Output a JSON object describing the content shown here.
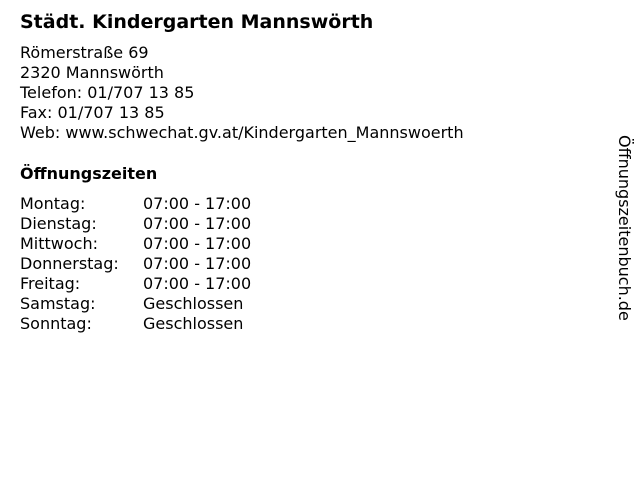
{
  "title": "Städt. Kindergarten Mannswörth",
  "address": {
    "street": "Römerstraße 69",
    "city": "2320 Mannswörth",
    "phone": "Telefon: 01/707 13 85",
    "fax": "Fax: 01/707 13 85",
    "web": "Web: www.schwechat.gv.at/Kindergarten_Mannswoerth"
  },
  "hours_heading": "Öffnungszeiten",
  "hours": [
    {
      "day": "Montag:",
      "time": "07:00 - 17:00"
    },
    {
      "day": "Dienstag:",
      "time": "07:00 - 17:00"
    },
    {
      "day": "Mittwoch:",
      "time": "07:00 - 17:00"
    },
    {
      "day": "Donnerstag:",
      "time": "07:00 - 17:00"
    },
    {
      "day": "Freitag:",
      "time": "07:00 - 17:00"
    },
    {
      "day": "Samstag:",
      "time": "Geschlossen"
    },
    {
      "day": "Sonntag:",
      "time": "Geschlossen"
    }
  ],
  "watermark": "Öffnungszeitenbuch.de"
}
